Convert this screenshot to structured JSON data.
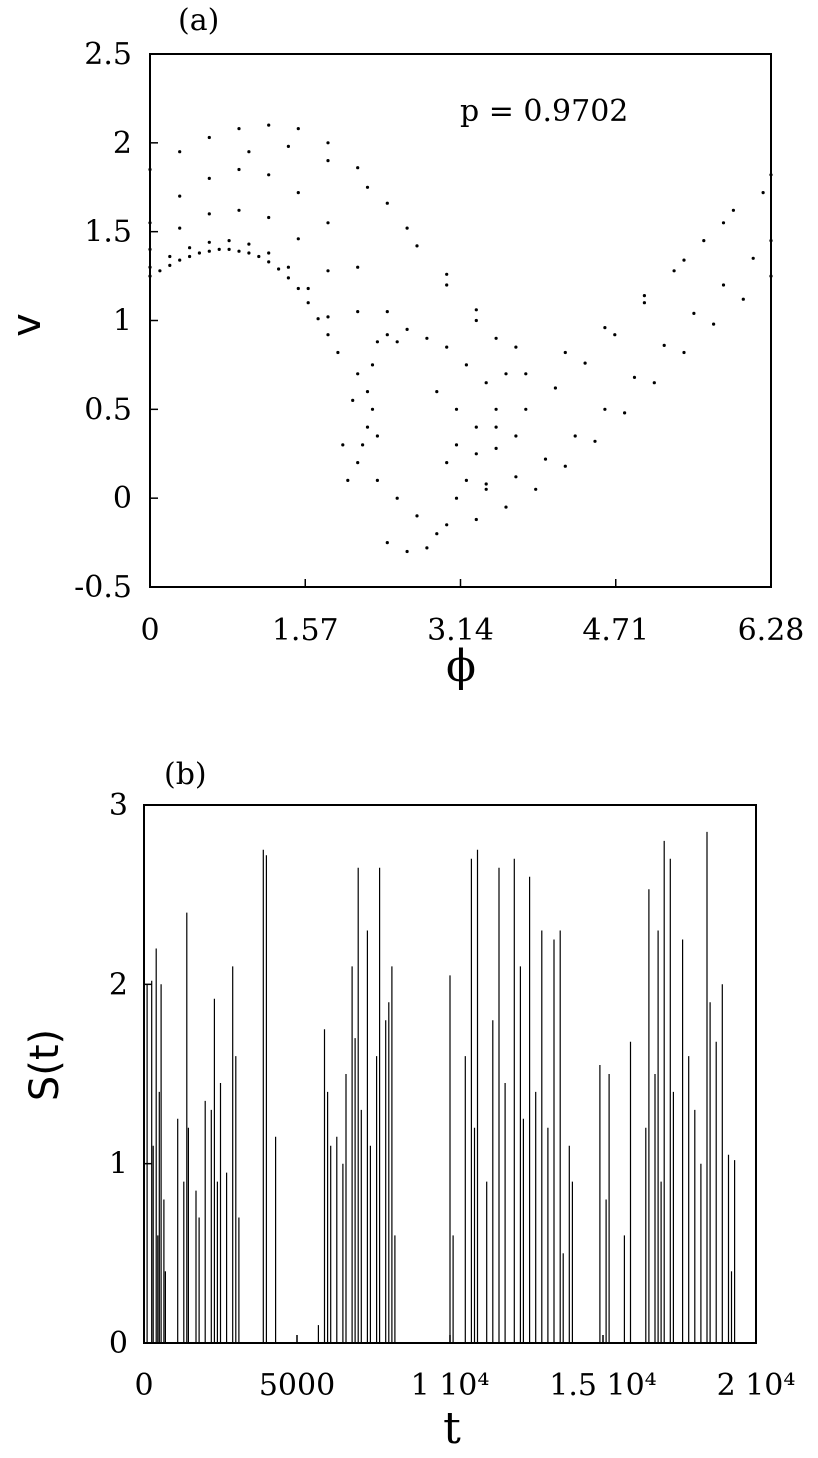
{
  "chart_data": [
    {
      "type": "scatter",
      "panel_label": "(a)",
      "annotation": "p = 0.9702",
      "xlabel": "ϕ",
      "ylabel": "v",
      "xlim": [
        0,
        6.28
      ],
      "ylim": [
        -0.5,
        2.5
      ],
      "xticks": [
        0,
        1.57,
        3.14,
        4.71,
        6.28
      ],
      "xtick_labels": [
        "0",
        "1.57",
        "3.14",
        "4.71",
        "6.28"
      ],
      "yticks": [
        -0.5,
        0,
        0.5,
        1,
        1.5,
        2,
        2.5
      ],
      "ytick_labels": [
        "-0.5",
        "0",
        "0.5",
        "1",
        "1.5",
        "2",
        "2.5"
      ],
      "grid": false,
      "color": "#000000",
      "points": [
        [
          0.0,
          1.25
        ],
        [
          0.1,
          1.28
        ],
        [
          0.2,
          1.31
        ],
        [
          0.3,
          1.34
        ],
        [
          0.4,
          1.36
        ],
        [
          0.5,
          1.38
        ],
        [
          0.6,
          1.39
        ],
        [
          0.7,
          1.4
        ],
        [
          0.8,
          1.4
        ],
        [
          0.9,
          1.39
        ],
        [
          1.0,
          1.38
        ],
        [
          1.1,
          1.36
        ],
        [
          1.2,
          1.33
        ],
        [
          1.3,
          1.29
        ],
        [
          1.4,
          1.24
        ],
        [
          1.5,
          1.18
        ],
        [
          1.6,
          1.1
        ],
        [
          1.7,
          1.01
        ],
        [
          1.8,
          0.92
        ],
        [
          1.9,
          0.82
        ],
        [
          0.0,
          1.3
        ],
        [
          0.2,
          1.36
        ],
        [
          0.4,
          1.41
        ],
        [
          0.6,
          1.44
        ],
        [
          0.8,
          1.45
        ],
        [
          1.0,
          1.43
        ],
        [
          1.2,
          1.38
        ],
        [
          1.4,
          1.3
        ],
        [
          1.6,
          1.18
        ],
        [
          1.8,
          1.02
        ],
        [
          0.0,
          1.4
        ],
        [
          0.3,
          1.52
        ],
        [
          0.6,
          1.6
        ],
        [
          0.9,
          1.62
        ],
        [
          1.2,
          1.58
        ],
        [
          1.5,
          1.46
        ],
        [
          1.8,
          1.28
        ],
        [
          2.1,
          1.05
        ],
        [
          0.0,
          1.55
        ],
        [
          0.3,
          1.7
        ],
        [
          0.6,
          1.8
        ],
        [
          0.9,
          1.85
        ],
        [
          1.2,
          1.82
        ],
        [
          1.5,
          1.72
        ],
        [
          1.8,
          1.55
        ],
        [
          2.1,
          1.3
        ],
        [
          2.4,
          1.05
        ],
        [
          0.0,
          1.85
        ],
        [
          0.3,
          1.95
        ],
        [
          0.6,
          2.03
        ],
        [
          0.9,
          2.08
        ],
        [
          1.2,
          2.1
        ],
        [
          1.5,
          2.08
        ],
        [
          1.8,
          2.0
        ],
        [
          2.1,
          1.86
        ],
        [
          2.4,
          1.66
        ],
        [
          2.7,
          1.42
        ],
        [
          3.0,
          1.2
        ],
        [
          3.3,
          1.0
        ],
        [
          3.5,
          0.9
        ],
        [
          1.0,
          1.95
        ],
        [
          1.4,
          1.98
        ],
        [
          1.8,
          1.9
        ],
        [
          2.2,
          1.75
        ],
        [
          2.6,
          1.52
        ],
        [
          3.0,
          1.26
        ],
        [
          3.3,
          1.06
        ],
        [
          2.2,
          0.6
        ],
        [
          2.25,
          0.75
        ],
        [
          2.3,
          0.88
        ],
        [
          2.4,
          0.92
        ],
        [
          2.5,
          0.88
        ],
        [
          2.2,
          0.4
        ],
        [
          2.3,
          0.35
        ],
        [
          2.25,
          0.5
        ],
        [
          2.1,
          0.7
        ],
        [
          2.05,
          0.55
        ],
        [
          2.15,
          0.3
        ],
        [
          2.1,
          0.2
        ],
        [
          2.3,
          0.1
        ],
        [
          2.5,
          0.0
        ],
        [
          2.7,
          -0.1
        ],
        [
          2.9,
          -0.2
        ],
        [
          2.4,
          -0.25
        ],
        [
          2.6,
          -0.3
        ],
        [
          2.8,
          -0.28
        ],
        [
          2.0,
          0.1
        ],
        [
          1.95,
          0.3
        ],
        [
          2.6,
          0.95
        ],
        [
          2.8,
          0.9
        ],
        [
          3.0,
          0.85
        ],
        [
          3.2,
          0.75
        ],
        [
          3.4,
          0.65
        ],
        [
          3.5,
          0.5
        ],
        [
          3.3,
          0.4
        ],
        [
          3.1,
          0.5
        ],
        [
          2.9,
          0.6
        ],
        [
          3.6,
          0.7
        ],
        [
          3.7,
          0.85
        ],
        [
          3.1,
          0.3
        ],
        [
          3.3,
          0.25
        ],
        [
          3.5,
          0.28
        ],
        [
          3.7,
          0.35
        ],
        [
          3.2,
          0.1
        ],
        [
          3.4,
          0.08
        ],
        [
          3.0,
          0.2
        ],
        [
          3.0,
          -0.15
        ],
        [
          3.3,
          -0.12
        ],
        [
          3.6,
          -0.05
        ],
        [
          3.9,
          0.05
        ],
        [
          4.2,
          0.18
        ],
        [
          4.5,
          0.32
        ],
        [
          4.8,
          0.48
        ],
        [
          5.1,
          0.65
        ],
        [
          5.4,
          0.82
        ],
        [
          5.7,
          0.98
        ],
        [
          6.0,
          1.12
        ],
        [
          6.28,
          1.25
        ],
        [
          3.1,
          0.0
        ],
        [
          3.4,
          0.05
        ],
        [
          3.7,
          0.12
        ],
        [
          4.0,
          0.22
        ],
        [
          4.3,
          0.35
        ],
        [
          4.6,
          0.5
        ],
        [
          4.9,
          0.68
        ],
        [
          5.2,
          0.86
        ],
        [
          5.5,
          1.04
        ],
        [
          5.8,
          1.2
        ],
        [
          6.1,
          1.35
        ],
        [
          6.28,
          1.45
        ],
        [
          3.5,
          0.4
        ],
        [
          3.8,
          0.5
        ],
        [
          4.1,
          0.62
        ],
        [
          4.4,
          0.76
        ],
        [
          4.7,
          0.92
        ],
        [
          5.0,
          1.1
        ],
        [
          5.3,
          1.28
        ],
        [
          5.6,
          1.45
        ],
        [
          5.9,
          1.62
        ],
        [
          6.28,
          1.82
        ],
        [
          3.8,
          0.7
        ],
        [
          4.2,
          0.82
        ],
        [
          4.6,
          0.96
        ],
        [
          5.0,
          1.14
        ],
        [
          5.4,
          1.34
        ],
        [
          5.8,
          1.55
        ],
        [
          6.2,
          1.72
        ]
      ]
    },
    {
      "type": "line",
      "panel_label": "(b)",
      "xlabel": "t",
      "ylabel": "S(t)",
      "xlim": [
        0,
        20000
      ],
      "ylim": [
        0,
        3
      ],
      "xticks": [
        0,
        5000,
        10000,
        15000,
        20000
      ],
      "xtick_labels": [
        "0",
        "5000",
        "1 10⁴",
        "1.5 10⁴",
        "2 10⁴"
      ],
      "yticks": [
        0,
        1,
        2,
        3
      ],
      "ytick_labels": [
        "0",
        "1",
        "2",
        "3"
      ],
      "grid": false,
      "color": "#000000",
      "x": [
        100,
        250,
        300,
        400,
        450,
        500,
        560,
        650,
        700,
        1100,
        1300,
        1400,
        1450,
        1700,
        1800,
        2000,
        2200,
        2300,
        2400,
        2500,
        2700,
        2900,
        3000,
        3100,
        3900,
        4000,
        4300,
        5700,
        5900,
        6000,
        6100,
        6300,
        6500,
        6600,
        6800,
        6900,
        7000,
        7100,
        7300,
        7400,
        7600,
        7700,
        7900,
        8000,
        8100,
        8200,
        10000,
        10100,
        10500,
        10700,
        10800,
        10900,
        11200,
        11400,
        11600,
        11800,
        12100,
        12300,
        12400,
        12600,
        12800,
        13000,
        13200,
        13400,
        13600,
        13700,
        13900,
        14000,
        14900,
        15100,
        15200,
        15700,
        15900,
        16400,
        16500,
        16700,
        16800,
        16900,
        17000,
        17200,
        17300,
        17600,
        17800,
        18000,
        18200,
        18400,
        18500,
        18700,
        18900,
        19100,
        19200,
        19300
      ],
      "values": [
        2.0,
        2.02,
        1.1,
        2.2,
        0.6,
        1.4,
        2.0,
        0.8,
        0.4,
        1.25,
        0.9,
        2.4,
        1.2,
        0.85,
        0.7,
        1.35,
        1.3,
        1.92,
        0.9,
        1.45,
        0.95,
        2.1,
        1.6,
        0.7,
        2.75,
        2.72,
        1.15,
        0.1,
        1.75,
        1.4,
        1.1,
        1.15,
        1.0,
        1.5,
        2.1,
        1.7,
        2.65,
        1.3,
        2.3,
        1.1,
        1.6,
        2.65,
        1.8,
        1.9,
        2.1,
        0.6,
        2.05,
        0.6,
        1.6,
        2.7,
        1.2,
        2.75,
        0.9,
        1.8,
        2.65,
        1.45,
        2.7,
        2.1,
        1.25,
        2.6,
        1.4,
        2.3,
        1.2,
        2.25,
        2.3,
        0.5,
        1.1,
        0.9,
        1.55,
        0.8,
        1.5,
        0.6,
        1.68,
        1.2,
        2.53,
        1.5,
        2.3,
        0.9,
        2.8,
        2.7,
        1.4,
        2.25,
        1.6,
        1.3,
        1.0,
        2.85,
        1.9,
        1.68,
        2.0,
        1.05,
        0.4,
        1.02
      ]
    }
  ]
}
